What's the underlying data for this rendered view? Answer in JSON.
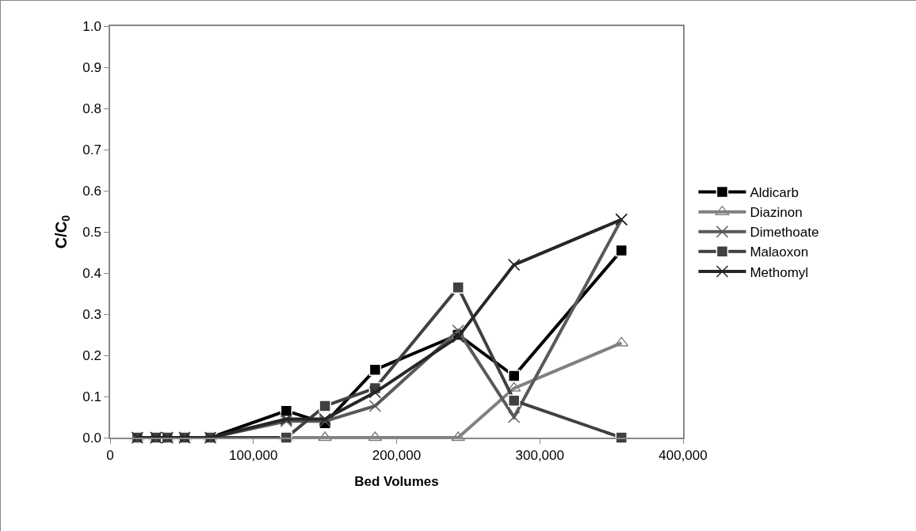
{
  "chart_data": {
    "type": "line",
    "xlabel": "Bed Volumes",
    "ylabel": "C/C$_{0}$",
    "x": [
      19000,
      32000,
      40000,
      52000,
      70000,
      123000,
      150000,
      185000,
      243000,
      282000,
      357000
    ],
    "series": [
      {
        "name": "Aldicarb",
        "color": "#000000",
        "marker": "square",
        "values": [
          0,
          0,
          0,
          0,
          0,
          0.065,
          0.035,
          0.165,
          0.25,
          0.15,
          0.455
        ]
      },
      {
        "name": "Diazinon",
        "color": "#808080",
        "marker": "triangle",
        "values": [
          0,
          0,
          0,
          0,
          0,
          0,
          0,
          0,
          0,
          0.12,
          0.23
        ]
      },
      {
        "name": "Dimethoate",
        "color": "#595959",
        "marker": "cross",
        "values": [
          0,
          0,
          0,
          0,
          0,
          0.04,
          0.04,
          0.077,
          0.26,
          0.05,
          0.53
        ]
      },
      {
        "name": "Malaoxon",
        "color": "#404040",
        "marker": "square",
        "values": [
          0,
          0,
          0,
          0,
          0,
          0,
          0.077,
          0.12,
          0.365,
          0.09,
          0
        ]
      },
      {
        "name": "Methomyl",
        "color": "#262626",
        "marker": "cross",
        "values": [
          0,
          0,
          0,
          0,
          0,
          0.045,
          0.045,
          0.11,
          0.245,
          0.42,
          0.53
        ]
      }
    ],
    "xlim": [
      0,
      400000
    ],
    "xticks": [
      0,
      {
        "value": 100000,
        "label": "100,000"
      },
      {
        "value": 200000,
        "label": "200,000"
      },
      {
        "value": 300000,
        "label": "300,000"
      },
      {
        "value": 400000,
        "label": "400,000"
      }
    ],
    "ylim": [
      0,
      1
    ],
    "yticks": [
      {
        "value": 0,
        "label": "0.0"
      },
      0.1,
      0.2,
      0.3,
      0.4,
      0.5,
      0.6,
      0.7,
      0.8,
      0.9,
      {
        "value": 1,
        "label": "1.0"
      }
    ],
    "grid": false,
    "legend": "right",
    "line_style": "solid"
  }
}
